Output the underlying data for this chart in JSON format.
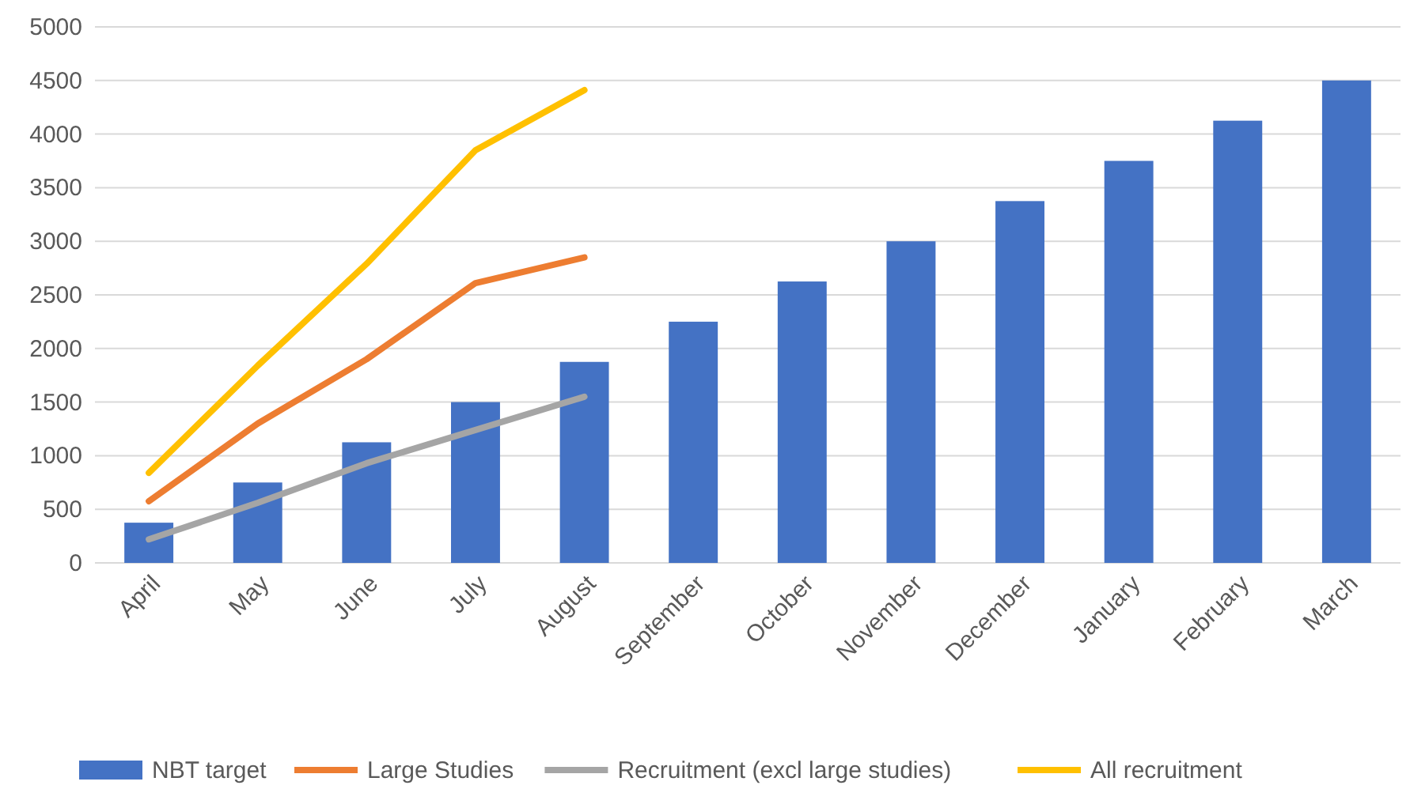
{
  "chart_data": {
    "type": "bar",
    "categories": [
      "April",
      "May",
      "June",
      "July",
      "August",
      "September",
      "October",
      "November",
      "December",
      "January",
      "February",
      "March"
    ],
    "series": [
      {
        "name": "NBT target",
        "color": "#4472c4",
        "values": [
          375,
          750,
          1125,
          1500,
          1875,
          2250,
          2625,
          3000,
          3375,
          3750,
          4125,
          4500
        ]
      },
      {
        "name": "Large Studies",
        "color": "#ed7d31",
        "type": "line",
        "values": [
          575,
          1300,
          1900,
          2610,
          2850,
          null,
          null,
          null,
          null,
          null,
          null,
          null
        ]
      },
      {
        "name": "Recruitment (excl large studies)",
        "color": "#a5a5a5",
        "type": "line",
        "values": [
          220,
          560,
          930,
          1240,
          1550,
          null,
          null,
          null,
          null,
          null,
          null,
          null
        ]
      },
      {
        "name": "All recruitment",
        "color": "#ffc000",
        "type": "line",
        "values": [
          840,
          1840,
          2790,
          3850,
          4410,
          null,
          null,
          null,
          null,
          null,
          null,
          null
        ]
      }
    ],
    "ylim": [
      0,
      5000
    ],
    "yticks": [
      0,
      500,
      1000,
      1500,
      2000,
      2500,
      3000,
      3500,
      4000,
      4500,
      5000
    ],
    "grid": "y",
    "legend": "bottom"
  }
}
